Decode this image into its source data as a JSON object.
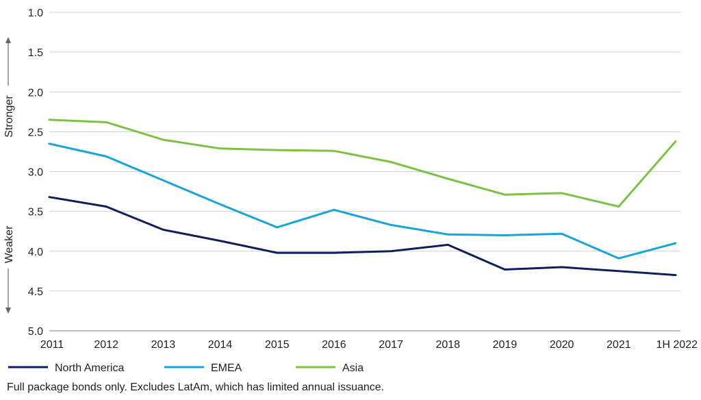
{
  "chart_data": {
    "type": "line",
    "categories": [
      "2011",
      "2012",
      "2013",
      "2014",
      "2015",
      "2016",
      "2017",
      "2018",
      "2019",
      "2020",
      "2021",
      "1H 2022"
    ],
    "y_ticks": [
      "1.0",
      "1.5",
      "2.0",
      "2.5",
      "3.0",
      "3.5",
      "4.0",
      "4.5",
      "5.0"
    ],
    "ylim": [
      1.0,
      5.0
    ],
    "y_inverted": true,
    "grid": "horizontal",
    "legend_position": "bottom-left",
    "y_annotation_top": "Stronger",
    "y_annotation_bottom": "Weaker",
    "series": [
      {
        "name": "North America",
        "color": "#0d1f5c",
        "values": [
          3.32,
          3.44,
          3.73,
          3.87,
          4.02,
          4.02,
          4.0,
          3.92,
          4.23,
          4.2,
          4.25,
          4.3
        ]
      },
      {
        "name": "EMEA",
        "color": "#19a3dd",
        "values": [
          2.65,
          2.81,
          3.11,
          3.41,
          3.7,
          3.48,
          3.67,
          3.79,
          3.8,
          3.78,
          4.09,
          3.9
        ]
      },
      {
        "name": "Asia",
        "color": "#7cc242",
        "values": [
          2.35,
          2.38,
          2.6,
          2.71,
          2.73,
          2.74,
          2.88,
          3.09,
          3.29,
          3.27,
          3.44,
          2.62
        ]
      }
    ],
    "footnote": "Full package bonds only. Excludes LatAm, which has limited annual issuance."
  }
}
